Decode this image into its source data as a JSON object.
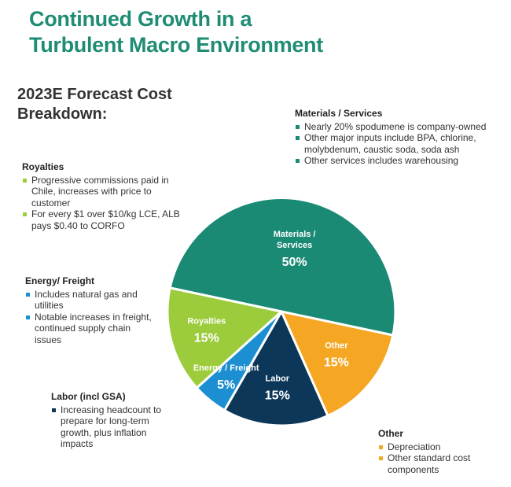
{
  "page": {
    "title_line1": "Continued Growth in a",
    "title_line2": "Turbulent Macro Environment",
    "subtitle_line1": "2023E Forecast Cost",
    "subtitle_line2": "Breakdown:"
  },
  "chart_data": {
    "type": "pie",
    "slices": [
      {
        "name_lines": [
          "Materials /",
          "Services"
        ],
        "value": 50,
        "label": "50%",
        "color": "#1a8a74"
      },
      {
        "name_lines": [
          "Other"
        ],
        "value": 15,
        "label": "15%",
        "color": "#f5a623"
      },
      {
        "name_lines": [
          "Labor"
        ],
        "value": 15,
        "label": "15%",
        "color": "#0c3758"
      },
      {
        "name_lines": [
          "Energy / Freight"
        ],
        "value": 5,
        "label": "5%",
        "color": "#1b8fd2"
      },
      {
        "name_lines": [
          "Royalties"
        ],
        "value": 15,
        "label": "15%",
        "color": "#9ccc3c"
      }
    ]
  },
  "notes": {
    "materials": {
      "heading": "Materials / Services",
      "bullet_color": "#1a8a74",
      "bullets": [
        "Nearly 20% spodumene is company-owned",
        "Other major inputs include BPA, chlorine, molybdenum, caustic soda, soda ash",
        "Other services includes warehousing"
      ]
    },
    "royalties": {
      "heading": "Royalties",
      "bullet_color": "#9ccc3c",
      "bullets": [
        "Progressive commissions paid in Chile, increases with price to customer",
        "For every $1 over $10/kg LCE, ALB pays $0.40 to CORFO"
      ]
    },
    "energy": {
      "heading": "Energy/ Freight",
      "bullet_color": "#1b8fd2",
      "bullets": [
        "Includes natural gas and utilities",
        "Notable increases in freight, continued supply chain issues"
      ]
    },
    "labor": {
      "heading": "Labor (incl GSA)",
      "bullet_color": "#0c3758",
      "bullets": [
        "Increasing headcount to prepare for long-term growth, plus inflation impacts"
      ]
    },
    "other": {
      "heading": "Other",
      "bullet_color": "#f5a623",
      "bullets": [
        "Depreciation",
        "Other standard cost components"
      ]
    }
  }
}
